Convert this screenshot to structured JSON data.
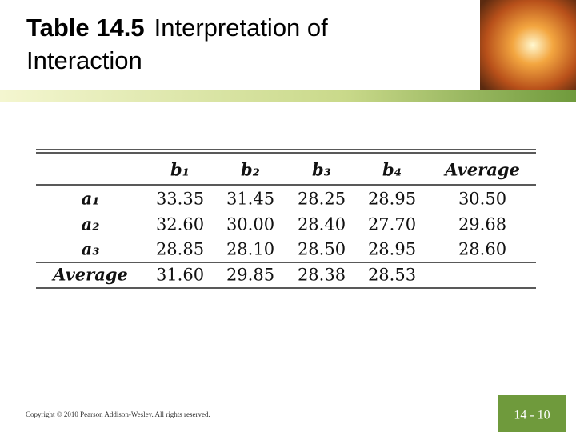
{
  "header": {
    "title_bold": "Table 14.5",
    "title_rest": "Interpretation of",
    "title_line2": "Interaction"
  },
  "table": {
    "columns": [
      "b₁",
      "b₂",
      "b₃",
      "b₄",
      "Average"
    ],
    "rows": [
      {
        "label": "a₁",
        "values": [
          "33.35",
          "31.45",
          "28.25",
          "28.95",
          "30.50"
        ]
      },
      {
        "label": "a₂",
        "values": [
          "32.60",
          "30.00",
          "28.40",
          "27.70",
          "29.68"
        ]
      },
      {
        "label": "a₃",
        "values": [
          "28.85",
          "28.10",
          "28.50",
          "28.95",
          "28.60"
        ]
      },
      {
        "label": "Average",
        "values": [
          "31.60",
          "29.85",
          "28.38",
          "28.53"
        ]
      }
    ]
  },
  "footer": {
    "copyright": "Copyright © 2010 Pearson Addison-Wesley. All rights reserved.",
    "page": "14 - 10"
  }
}
